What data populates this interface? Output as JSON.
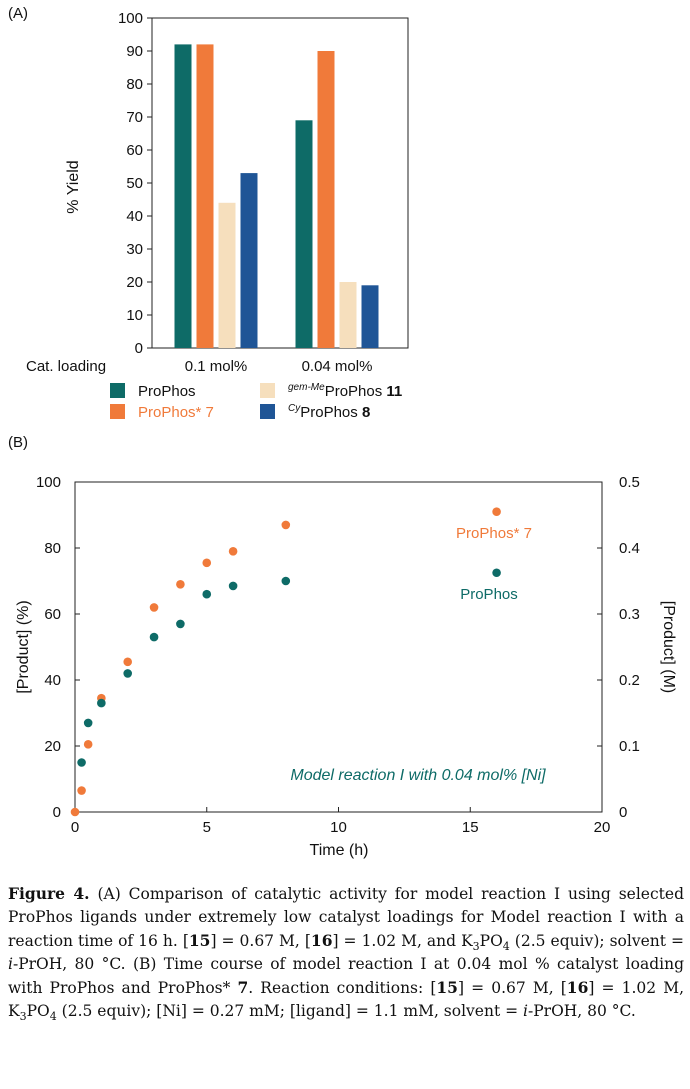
{
  "chart_data": [
    {
      "panel": "(A)",
      "type": "bar",
      "ylabel": "% Yield",
      "ylim": [
        0,
        100
      ],
      "yticks": [
        0,
        10,
        20,
        30,
        40,
        50,
        60,
        70,
        80,
        90,
        100
      ],
      "xlabel": "Cat. loading",
      "categories": [
        "0.1 mol%",
        "0.04 mol%"
      ],
      "series": [
        {
          "name": "ProPhos",
          "color": "#0e6b67",
          "values": [
            92,
            69
          ]
        },
        {
          "name": "ProPhos* 7",
          "color": "#f07a3a",
          "values": [
            92,
            90
          ]
        },
        {
          "name": "gem-MeProPhos 11",
          "color": "#f6dfbd",
          "values": [
            44,
            20
          ]
        },
        {
          "name": "CyProPhos 8",
          "color": "#1f5596",
          "values": [
            53,
            19
          ]
        }
      ],
      "legend": [
        {
          "text": "ProPhos",
          "color": "#0e6b67",
          "text_color": "#111111"
        },
        {
          "text": "ProPhos* 7",
          "color": "#f07a3a",
          "text_color": "#f07a3a"
        },
        {
          "sup": "gem-Me",
          "text": "ProPhos ",
          "bold": "11",
          "color": "#f6dfbd",
          "text_color": "#111111"
        },
        {
          "sup": "Cy",
          "text": "ProPhos ",
          "bold": "8",
          "color": "#1f5596",
          "text_color": "#111111"
        }
      ]
    },
    {
      "panel": "(B)",
      "type": "scatter",
      "xlabel": "Time (h)",
      "ylabel": "[Product] (%)",
      "ylabel_right": "[Product] (M)",
      "xlim": [
        0,
        20
      ],
      "ylim": [
        0,
        100
      ],
      "ylim_right": [
        0,
        0.5
      ],
      "xticks": [
        0,
        5,
        10,
        15,
        20
      ],
      "yticks": [
        0,
        20,
        40,
        60,
        80,
        100
      ],
      "yticks_right": [
        "0",
        "0.1",
        "0.2",
        "0.3",
        "0.4",
        "0.5"
      ],
      "annotation": "Model reaction I with 0.04 mol% [Ni]",
      "series": [
        {
          "name": "ProPhos* 7",
          "color": "#f07a3a",
          "label": "ProPhos* 7",
          "points": [
            [
              0,
              0
            ],
            [
              0.25,
              6.5
            ],
            [
              0.5,
              20.5
            ],
            [
              1,
              34.5
            ],
            [
              2,
              45.5
            ],
            [
              3,
              62
            ],
            [
              4,
              69
            ],
            [
              5,
              75.5
            ],
            [
              6,
              79
            ],
            [
              8,
              87
            ],
            [
              16,
              91
            ]
          ]
        },
        {
          "name": "ProPhos",
          "color": "#0e6b67",
          "label": "ProPhos",
          "points": [
            [
              0.25,
              15
            ],
            [
              0.5,
              27
            ],
            [
              1,
              33
            ],
            [
              2,
              42
            ],
            [
              3,
              53
            ],
            [
              4,
              57
            ],
            [
              5,
              66
            ],
            [
              6,
              68.5
            ],
            [
              8,
              70
            ],
            [
              16,
              72.5
            ]
          ]
        }
      ]
    }
  ],
  "caption": {
    "figure_label": "Figure 4.",
    "p1": " (A) Comparison of catalytic activity for model reaction I using selected ProPhos ligands under extremely low catalyst loadings for Model reaction I with a reaction time of 16 h. [",
    "b1": "15",
    "p2": "] = 0.67 M, [",
    "b2": "16",
    "p3": "] = 1.02 M, and K",
    "s1": "3",
    "p4": "PO",
    "s2": "4",
    "p5": " (2.5 equiv); solvent = ",
    "i1": "i",
    "p6": "-PrOH, 80 °C. (B) Time course of model reaction I at 0.04 mol % catalyst loading with ProPhos and ProPhos* ",
    "b3": "7",
    "p7": ". Reaction conditions: [",
    "b4": "15",
    "p8": "] = 0.67 M, [",
    "b5": "16",
    "p9": "] = 1.02 M, K",
    "s3": "3",
    "p10": "PO",
    "s4": "4",
    "p11": " (2.5 equiv); [Ni] = 0.27 mM; [ligand] = 1.1 mM, solvent = ",
    "i2": "i",
    "p12": "-PrOH, 80 °C."
  }
}
